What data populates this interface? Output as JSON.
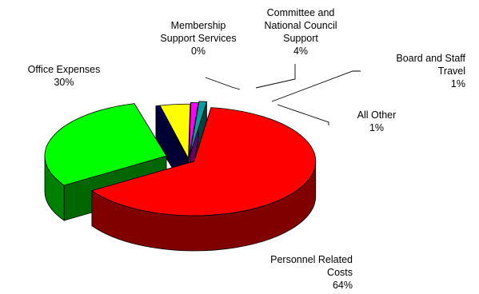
{
  "chart_data": {
    "type": "pie",
    "three_d": true,
    "exploded": true,
    "legend": "none",
    "slices": [
      {
        "label": "Personnel Related Costs",
        "display_lines": [
          "Personnel Related",
          "Costs"
        ],
        "percent_text": "64%",
        "value": 64,
        "color": "#ff0000"
      },
      {
        "label": "Office Expenses",
        "display_lines": [
          "Office Expenses"
        ],
        "percent_text": "30%",
        "value": 30,
        "color": "#00ff00"
      },
      {
        "label": "Membership Support Services",
        "display_lines": [
          "Membership",
          "Support Services"
        ],
        "percent_text": "0%",
        "value": 0.5,
        "color": "#000080"
      },
      {
        "label": "Committee and National Council Support",
        "display_lines": [
          "Committee and",
          "National Council",
          "Support"
        ],
        "percent_text": "4%",
        "value": 4,
        "color": "#ffff00"
      },
      {
        "label": "Board and Staff Travel",
        "display_lines": [
          "Board and Staff",
          "Travel"
        ],
        "percent_text": "1%",
        "value": 1,
        "color": "#ff00ff"
      },
      {
        "label": "All Other",
        "display_lines": [
          "All Other"
        ],
        "percent_text": "1%",
        "value": 1,
        "color": "#00a0a0"
      }
    ]
  }
}
